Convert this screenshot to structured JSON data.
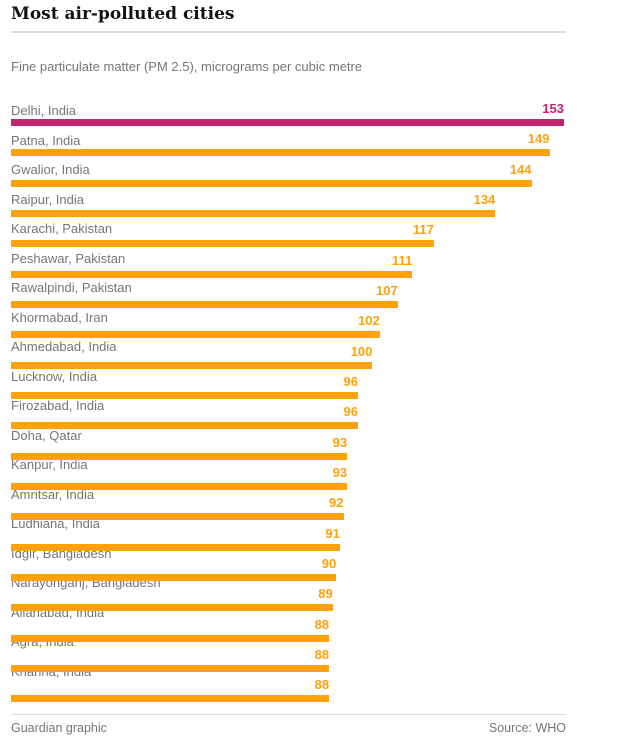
{
  "header": {
    "title": "Most air-polluted cities"
  },
  "subtitle": "Fine particulate matter (PM 2.5), micrograms per cubic metre",
  "footer": {
    "credit": "Guardian graphic",
    "source": "Source: WHO"
  },
  "colors": {
    "highlight_bar": "#c12570",
    "bar": "#ffa10a",
    "label_gray": "#767676",
    "title_ink": "#121212",
    "rule_gray": "#dcdcdc"
  },
  "chart_data": {
    "type": "bar",
    "orientation": "horizontal",
    "title": "Most air-polluted cities",
    "subtitle": "Fine particulate matter (PM 2.5), micrograms per cubic metre",
    "unit": "micrograms per cubic metre",
    "xlim": [
      0,
      153
    ],
    "grid": false,
    "value_labels": "at bar end, right-aligned",
    "highlight_index": 0,
    "categories": [
      "Delhi, India",
      "Patna, India",
      "Gwalior, India",
      "Raipur, India",
      "Karachi, Pakistan",
      "Peshawar, Pakistan",
      "Rawalpindi, Pakistan",
      "Khormabad, Iran",
      "Ahmedabad, India",
      "Lucknow, India",
      "Firozabad, India",
      "Doha, Qatar",
      "Kanpur, India",
      "Amritsar, India",
      "Ludhiana, India",
      "Idgir, Bangladesh",
      "Narayonganj, Bangladesh",
      "Allahabad, India",
      "Agra, India",
      "Khanna, India"
    ],
    "values": [
      153,
      149,
      144,
      134,
      117,
      111,
      107,
      102,
      100,
      96,
      96,
      93,
      93,
      92,
      91,
      90,
      89,
      88,
      88,
      88
    ],
    "max_value": 153,
    "source": "WHO"
  }
}
